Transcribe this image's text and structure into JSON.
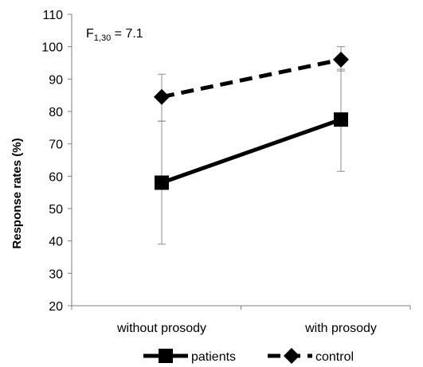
{
  "chart_data": {
    "type": "line",
    "categories": [
      "without prosody",
      "with prosody"
    ],
    "ylabel": "Response rates (%)",
    "xlabel": "",
    "ylim": [
      20,
      110
    ],
    "yticks": [
      20,
      30,
      40,
      50,
      60,
      70,
      80,
      90,
      100,
      110
    ],
    "grid": false,
    "legend_position": "bottom",
    "annotation": {
      "base": "F",
      "subscript": "1,30",
      "rest": " = 7.1"
    },
    "series": [
      {
        "name": "patients",
        "values": [
          58,
          77.5
        ],
        "error": [
          [
            39,
            77
          ],
          [
            61.5,
            93
          ]
        ],
        "marker": "square",
        "line": "solid",
        "color": "#000000"
      },
      {
        "name": "control",
        "values": [
          84.5,
          96
        ],
        "error": [
          [
            77,
            91.5
          ],
          [
            92.5,
            100
          ]
        ],
        "marker": "diamond",
        "line": "dashed",
        "color": "#000000"
      }
    ]
  }
}
